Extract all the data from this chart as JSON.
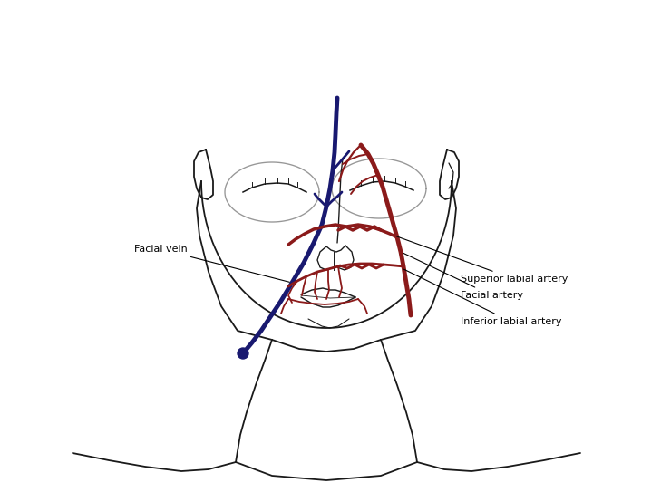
{
  "background_color": "#ffffff",
  "head_color": "#1a1a1a",
  "vessel_blue": "#191970",
  "vessel_red": "#8b1a1a",
  "text_color": "#000000",
  "labels": {
    "facial_vein": "Facial vein",
    "superior_labial": "Superior labial artery",
    "facial_artery": "Facial artery",
    "inferior_labial": "Inferior labial artery"
  },
  "figsize": [
    7.18,
    5.43
  ],
  "dpi": 100
}
